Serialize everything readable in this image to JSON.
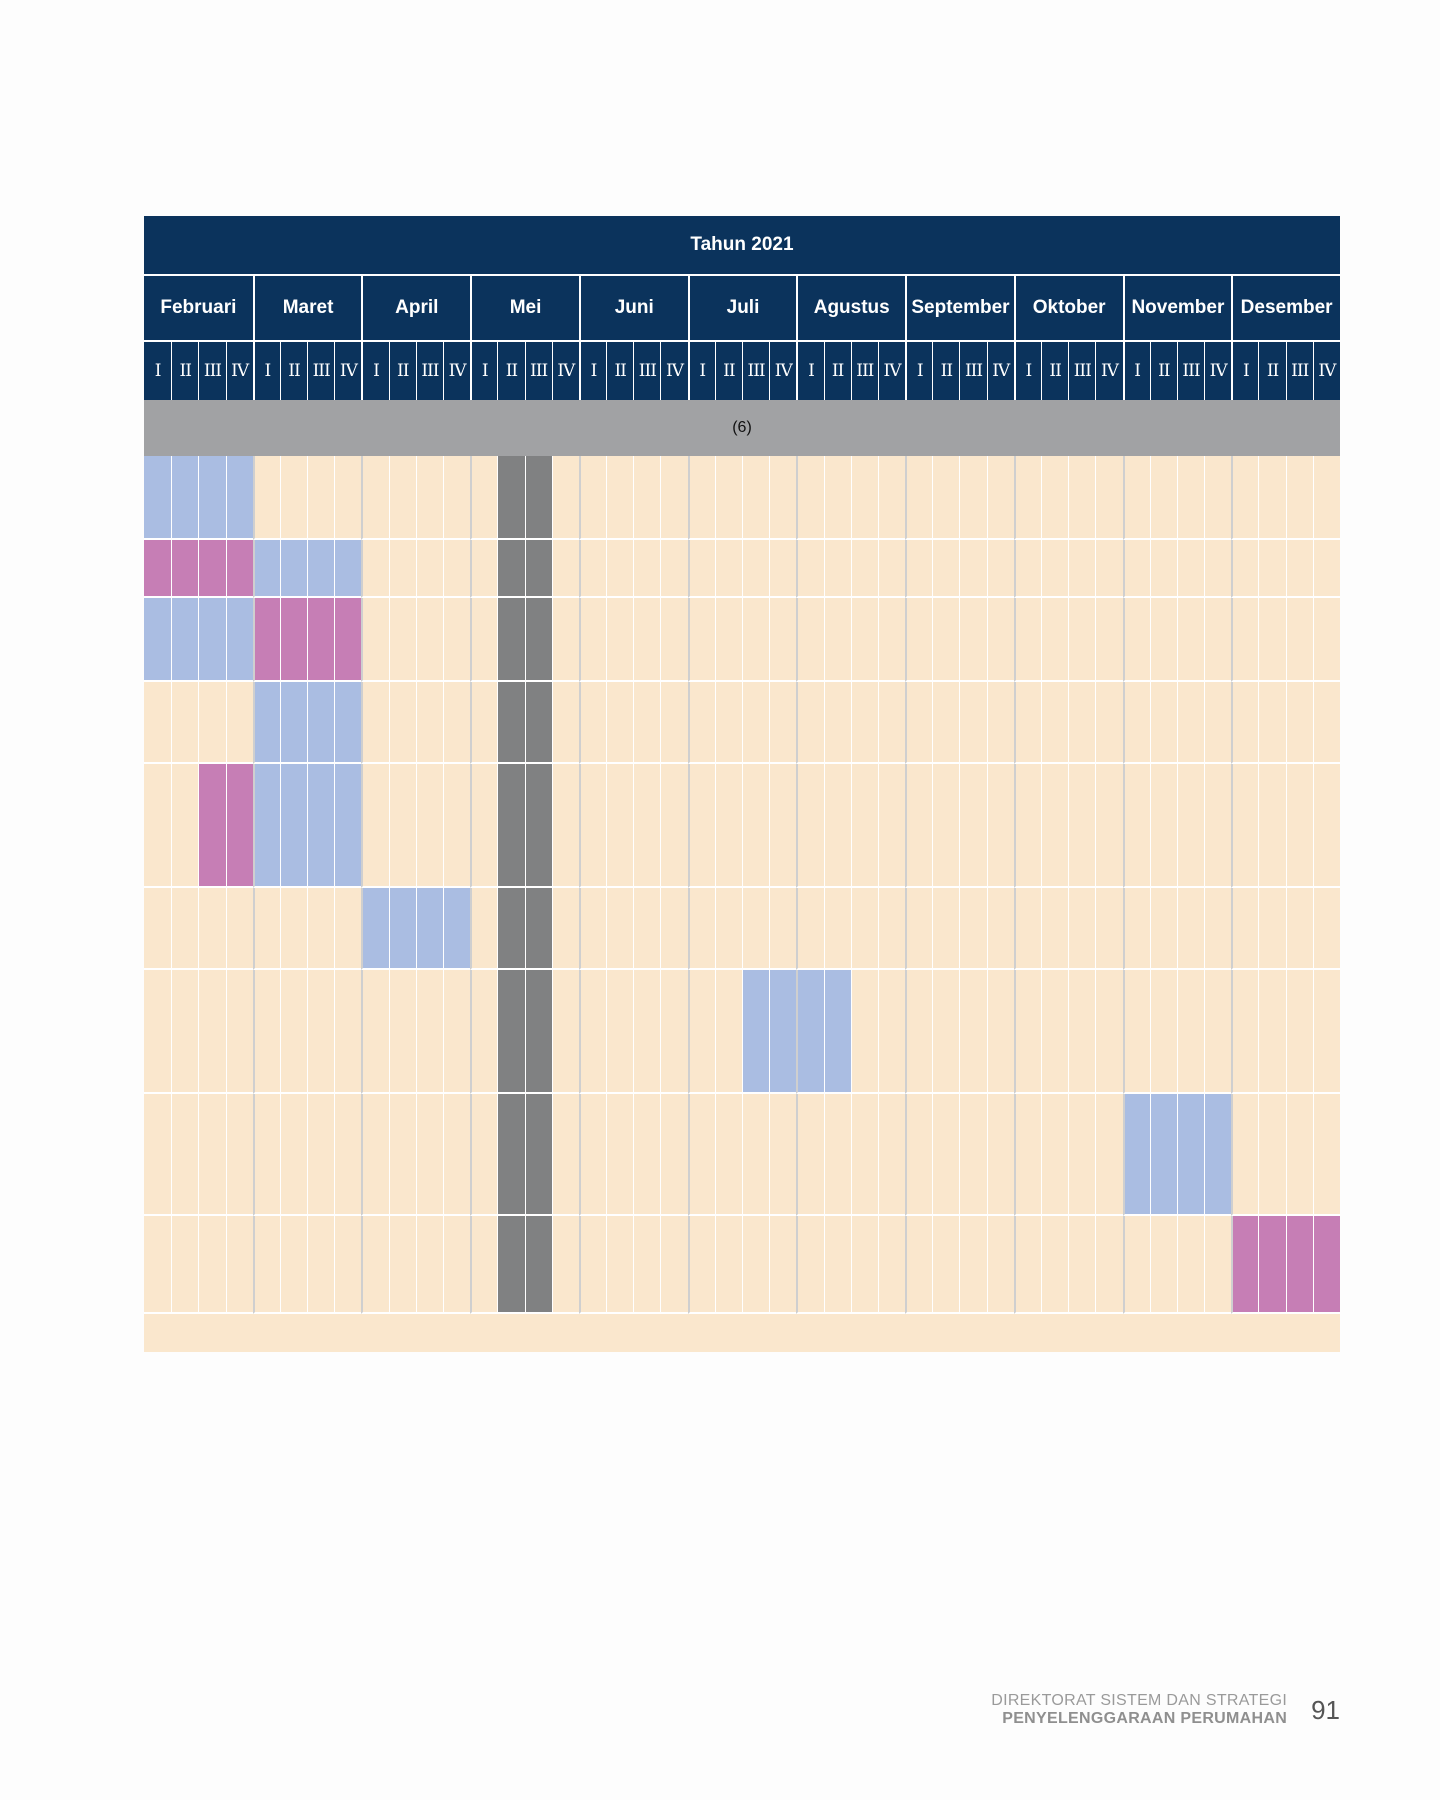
{
  "table": {
    "year_label": "Tahun 2021",
    "months": [
      "Februari",
      "Maret",
      "April",
      "Mei",
      "Juni",
      "Juli",
      "Agustus",
      "September",
      "Oktober",
      "November",
      "Desember"
    ],
    "weeks": [
      "I",
      "II",
      "III",
      "IV"
    ],
    "column_number": "(6)",
    "rows": [
      {
        "blue": [
          0,
          1,
          2,
          3
        ],
        "pink": []
      },
      {
        "blue": [
          4,
          5,
          6,
          7
        ],
        "pink": [
          0,
          1,
          2,
          3
        ]
      },
      {
        "blue": [
          0,
          1,
          2,
          3
        ],
        "pink": [
          4,
          5,
          6,
          7
        ]
      },
      {
        "blue": [
          4,
          5,
          6,
          7
        ],
        "pink": []
      },
      {
        "blue": [
          4,
          5,
          6,
          7
        ],
        "pink": [
          2,
          3
        ]
      },
      {
        "blue": [
          8,
          9,
          10,
          11
        ],
        "pink": []
      },
      {
        "blue": [
          22,
          23,
          24,
          25
        ],
        "pink": []
      },
      {
        "blue": [
          36,
          37,
          38,
          39
        ],
        "pink": []
      },
      {
        "blue": [],
        "pink": [
          40,
          41,
          42,
          43
        ]
      }
    ],
    "gray_columns": [
      13,
      14
    ]
  },
  "footer": {
    "line1": "DIREKTORAT SISTEM DAN STRATEGI",
    "line2": "PENYELENGGARAAN PERUMAHAN",
    "page_number": "91"
  },
  "colors": {
    "header": "#0b335c",
    "cell": "#fae7cd",
    "blue": "#aabde2",
    "pink": "#c67eb5",
    "gray": "#808182"
  }
}
